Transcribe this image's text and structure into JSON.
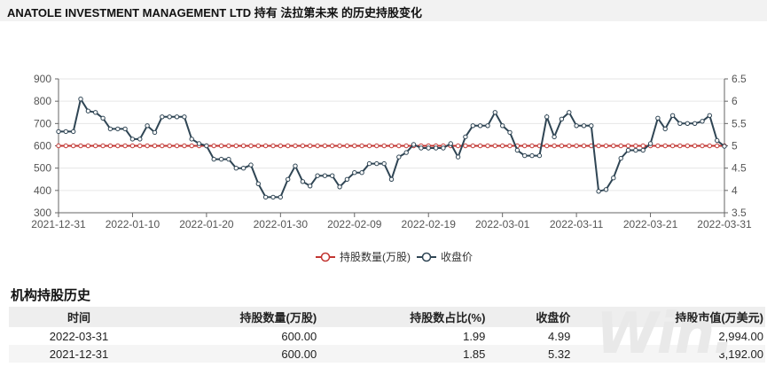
{
  "page_title": "ANATOLE INVESTMENT MANAGEMENT LTD 持有 法拉第未来 的历史持股变化",
  "section_title": "机构持股历史",
  "watermark_text": "Win.",
  "table": {
    "headers": [
      "时间",
      "持股数量(万股)",
      "持股数占比(%)",
      "收盘价",
      "持股市值(万美元)"
    ],
    "rows": [
      [
        "2022-03-31",
        "600.00",
        "1.99",
        "4.99",
        "2,994.00"
      ],
      [
        "2021-12-31",
        "600.00",
        "1.85",
        "5.32",
        "3,192.00"
      ]
    ]
  },
  "chart_data": {
    "type": "line",
    "title": "",
    "x_ticks": [
      "2021-12-31",
      "2022-01-10",
      "2022-01-20",
      "2022-01-30",
      "2022-02-09",
      "2022-02-19",
      "2022-03-01",
      "2022-03-11",
      "2022-03-21",
      "2022-03-31"
    ],
    "x_range": [
      "2021-12-31",
      "2022-03-31"
    ],
    "y_left": {
      "min": 300,
      "max": 900,
      "ticks": [
        300,
        400,
        500,
        600,
        700,
        800,
        900
      ]
    },
    "y_right": {
      "min": 3.5,
      "max": 6.5,
      "ticks": [
        3.5,
        4,
        4.5,
        5,
        5.5,
        6,
        6.5
      ]
    },
    "legend_position": "bottom-center",
    "grid": "horizontal",
    "colors": {
      "holding": "#c23531",
      "close": "#2f4554"
    },
    "series": [
      {
        "name": "持股数量(万股)",
        "axis": "left",
        "color": "#c23531",
        "points": [
          [
            "2021-12-31",
            600
          ],
          [
            "2022-01-01",
            600
          ],
          [
            "2022-01-02",
            600
          ],
          [
            "2022-01-03",
            600
          ],
          [
            "2022-01-04",
            600
          ],
          [
            "2022-01-05",
            600
          ],
          [
            "2022-01-06",
            600
          ],
          [
            "2022-01-07",
            600
          ],
          [
            "2022-01-08",
            600
          ],
          [
            "2022-01-09",
            600
          ],
          [
            "2022-01-10",
            600
          ],
          [
            "2022-01-11",
            600
          ],
          [
            "2022-01-12",
            600
          ],
          [
            "2022-01-13",
            600
          ],
          [
            "2022-01-14",
            600
          ],
          [
            "2022-01-15",
            600
          ],
          [
            "2022-01-16",
            600
          ],
          [
            "2022-01-17",
            600
          ],
          [
            "2022-01-18",
            600
          ],
          [
            "2022-01-19",
            600
          ],
          [
            "2022-01-20",
            600
          ],
          [
            "2022-01-21",
            600
          ],
          [
            "2022-01-22",
            600
          ],
          [
            "2022-01-23",
            600
          ],
          [
            "2022-01-24",
            600
          ],
          [
            "2022-01-25",
            600
          ],
          [
            "2022-01-26",
            600
          ],
          [
            "2022-01-27",
            600
          ],
          [
            "2022-01-28",
            600
          ],
          [
            "2022-01-29",
            600
          ],
          [
            "2022-01-30",
            600
          ],
          [
            "2022-01-31",
            600
          ],
          [
            "2022-02-01",
            600
          ],
          [
            "2022-02-02",
            600
          ],
          [
            "2022-02-03",
            600
          ],
          [
            "2022-02-04",
            600
          ],
          [
            "2022-02-05",
            600
          ],
          [
            "2022-02-06",
            600
          ],
          [
            "2022-02-07",
            600
          ],
          [
            "2022-02-08",
            600
          ],
          [
            "2022-02-09",
            600
          ],
          [
            "2022-02-10",
            600
          ],
          [
            "2022-02-11",
            600
          ],
          [
            "2022-02-12",
            600
          ],
          [
            "2022-02-13",
            600
          ],
          [
            "2022-02-14",
            600
          ],
          [
            "2022-02-15",
            600
          ],
          [
            "2022-02-16",
            600
          ],
          [
            "2022-02-17",
            600
          ],
          [
            "2022-02-18",
            600
          ],
          [
            "2022-02-19",
            600
          ],
          [
            "2022-02-20",
            600
          ],
          [
            "2022-02-21",
            600
          ],
          [
            "2022-02-22",
            600
          ],
          [
            "2022-02-23",
            600
          ],
          [
            "2022-02-24",
            600
          ],
          [
            "2022-02-25",
            600
          ],
          [
            "2022-02-26",
            600
          ],
          [
            "2022-02-27",
            600
          ],
          [
            "2022-02-28",
            600
          ],
          [
            "2022-03-01",
            600
          ],
          [
            "2022-03-02",
            600
          ],
          [
            "2022-03-03",
            600
          ],
          [
            "2022-03-04",
            600
          ],
          [
            "2022-03-05",
            600
          ],
          [
            "2022-03-06",
            600
          ],
          [
            "2022-03-07",
            600
          ],
          [
            "2022-03-08",
            600
          ],
          [
            "2022-03-09",
            600
          ],
          [
            "2022-03-10",
            600
          ],
          [
            "2022-03-11",
            600
          ],
          [
            "2022-03-12",
            600
          ],
          [
            "2022-03-13",
            600
          ],
          [
            "2022-03-14",
            600
          ],
          [
            "2022-03-15",
            600
          ],
          [
            "2022-03-16",
            600
          ],
          [
            "2022-03-17",
            600
          ],
          [
            "2022-03-18",
            600
          ],
          [
            "2022-03-19",
            600
          ],
          [
            "2022-03-20",
            600
          ],
          [
            "2022-03-21",
            600
          ],
          [
            "2022-03-22",
            600
          ],
          [
            "2022-03-23",
            600
          ],
          [
            "2022-03-24",
            600
          ],
          [
            "2022-03-25",
            600
          ],
          [
            "2022-03-26",
            600
          ],
          [
            "2022-03-27",
            600
          ],
          [
            "2022-03-28",
            600
          ],
          [
            "2022-03-29",
            600
          ],
          [
            "2022-03-30",
            600
          ],
          [
            "2022-03-31",
            600
          ]
        ]
      },
      {
        "name": "收盘价",
        "axis": "right",
        "color": "#2f4554",
        "points": [
          [
            "2021-12-31",
            5.32
          ],
          [
            "2022-01-01",
            5.32
          ],
          [
            "2022-01-02",
            5.32
          ],
          [
            "2022-01-03",
            6.05
          ],
          [
            "2022-01-04",
            5.78
          ],
          [
            "2022-01-05",
            5.75
          ],
          [
            "2022-01-06",
            5.62
          ],
          [
            "2022-01-07",
            5.38
          ],
          [
            "2022-01-08",
            5.38
          ],
          [
            "2022-01-09",
            5.38
          ],
          [
            "2022-01-10",
            5.15
          ],
          [
            "2022-01-11",
            5.15
          ],
          [
            "2022-01-12",
            5.45
          ],
          [
            "2022-01-13",
            5.3
          ],
          [
            "2022-01-14",
            5.65
          ],
          [
            "2022-01-15",
            5.65
          ],
          [
            "2022-01-16",
            5.65
          ],
          [
            "2022-01-17",
            5.65
          ],
          [
            "2022-01-18",
            5.15
          ],
          [
            "2022-01-19",
            5.05
          ],
          [
            "2022-01-20",
            5.0
          ],
          [
            "2022-01-21",
            4.7
          ],
          [
            "2022-01-22",
            4.7
          ],
          [
            "2022-01-23",
            4.7
          ],
          [
            "2022-01-24",
            4.5
          ],
          [
            "2022-01-25",
            4.5
          ],
          [
            "2022-01-26",
            4.57
          ],
          [
            "2022-01-27",
            4.15
          ],
          [
            "2022-01-28",
            3.85
          ],
          [
            "2022-01-29",
            3.85
          ],
          [
            "2022-01-30",
            3.85
          ],
          [
            "2022-01-31",
            4.25
          ],
          [
            "2022-02-01",
            4.55
          ],
          [
            "2022-02-02",
            4.2
          ],
          [
            "2022-02-03",
            4.1
          ],
          [
            "2022-02-04",
            4.33
          ],
          [
            "2022-02-05",
            4.33
          ],
          [
            "2022-02-06",
            4.33
          ],
          [
            "2022-02-07",
            4.08
          ],
          [
            "2022-02-08",
            4.25
          ],
          [
            "2022-02-09",
            4.4
          ],
          [
            "2022-02-10",
            4.4
          ],
          [
            "2022-02-11",
            4.6
          ],
          [
            "2022-02-12",
            4.6
          ],
          [
            "2022-02-13",
            4.6
          ],
          [
            "2022-02-14",
            4.25
          ],
          [
            "2022-02-15",
            4.75
          ],
          [
            "2022-02-16",
            4.85
          ],
          [
            "2022-02-17",
            5.03
          ],
          [
            "2022-02-18",
            4.95
          ],
          [
            "2022-02-19",
            4.95
          ],
          [
            "2022-02-20",
            4.95
          ],
          [
            "2022-02-21",
            4.95
          ],
          [
            "2022-02-22",
            5.05
          ],
          [
            "2022-02-23",
            4.75
          ],
          [
            "2022-02-24",
            5.2
          ],
          [
            "2022-02-25",
            5.45
          ],
          [
            "2022-02-26",
            5.45
          ],
          [
            "2022-02-27",
            5.45
          ],
          [
            "2022-02-28",
            5.75
          ],
          [
            "2022-03-01",
            5.45
          ],
          [
            "2022-03-02",
            5.3
          ],
          [
            "2022-03-03",
            4.9
          ],
          [
            "2022-03-04",
            4.78
          ],
          [
            "2022-03-05",
            4.78
          ],
          [
            "2022-03-06",
            4.78
          ],
          [
            "2022-03-07",
            5.65
          ],
          [
            "2022-03-08",
            5.2
          ],
          [
            "2022-03-09",
            5.6
          ],
          [
            "2022-03-10",
            5.75
          ],
          [
            "2022-03-11",
            5.45
          ],
          [
            "2022-03-12",
            5.45
          ],
          [
            "2022-03-13",
            5.45
          ],
          [
            "2022-03-14",
            3.98
          ],
          [
            "2022-03-15",
            4.02
          ],
          [
            "2022-03-16",
            4.28
          ],
          [
            "2022-03-17",
            4.72
          ],
          [
            "2022-03-18",
            4.9
          ],
          [
            "2022-03-19",
            4.9
          ],
          [
            "2022-03-20",
            4.9
          ],
          [
            "2022-03-21",
            5.05
          ],
          [
            "2022-03-22",
            5.62
          ],
          [
            "2022-03-23",
            5.38
          ],
          [
            "2022-03-24",
            5.68
          ],
          [
            "2022-03-25",
            5.5
          ],
          [
            "2022-03-26",
            5.5
          ],
          [
            "2022-03-27",
            5.5
          ],
          [
            "2022-03-28",
            5.55
          ],
          [
            "2022-03-29",
            5.68
          ],
          [
            "2022-03-30",
            5.12
          ],
          [
            "2022-03-31",
            4.99
          ]
        ]
      }
    ]
  }
}
